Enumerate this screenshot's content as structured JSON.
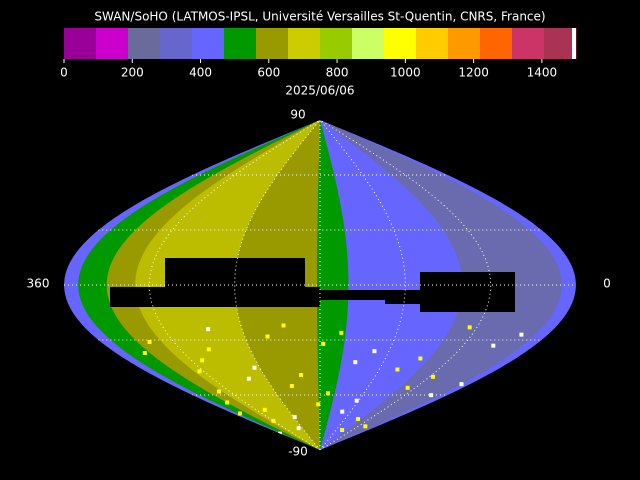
{
  "title": "SWAN/SoHO (LATMOS-IPSL, Université Versailles St-Quentin, CNRS, France)",
  "colorbar": {
    "lim": [
      0,
      1500
    ],
    "ticks": [
      0,
      200,
      400,
      600,
      800,
      1000,
      1200,
      1400
    ],
    "colors": [
      "#990099",
      "#cc00cc",
      "#6b6b9b",
      "#6666cc",
      "#6666ff",
      "#009900",
      "#999900",
      "#cccc00",
      "#99cc00",
      "#ccff66",
      "#ffff00",
      "#ffcc00",
      "#ff9900",
      "#ff6600",
      "#cc3366",
      "#aa3355"
    ]
  },
  "date": "2025/06/06",
  "map": {
    "top_label": "90",
    "bottom_label": "-90",
    "left_label": "360",
    "right_label": "0"
  }
}
